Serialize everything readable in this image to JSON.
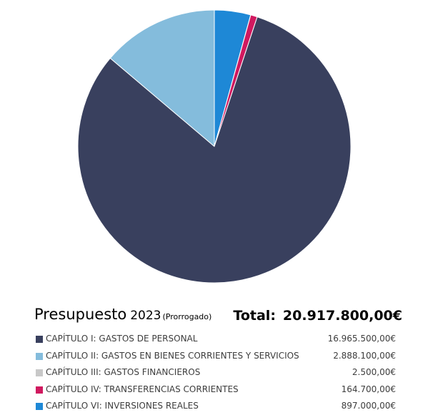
{
  "title": {
    "main": "Presupuesto",
    "year": "2023",
    "note": "(Prorrogado)"
  },
  "total": {
    "label": "Total:",
    "value": "20.917.800,00€"
  },
  "legend": [
    {
      "label": "CAPÍTULO I: GASTOS DE PERSONAL",
      "value": "16.965.500,00€",
      "color": "#39405e"
    },
    {
      "label": "CAPÍTULO II: GASTOS EN BIENES CORRIENTES Y SERVICIOS",
      "value": "2.888.100,00€",
      "color": "#84bcdc"
    },
    {
      "label": "CAPÍTULO III: GASTOS FINANCIEROS",
      "value": "2.500,00€",
      "color": "#c8c8c8"
    },
    {
      "label": "CAPÍTULO IV: TRANSFERENCIAS CORRIENTES",
      "value": "164.700,00€",
      "color": "#d0195f"
    },
    {
      "label": "CAPÍTULO VI: INVERSIONES REALES",
      "value": "897.000,00€",
      "color": "#1e88d6"
    }
  ],
  "chart_data": {
    "type": "pie",
    "title": "Presupuesto 2023 (Prorrogado)",
    "total": 20917800.0,
    "currency": "€",
    "slice_order": "clockwise from top",
    "legend_placement": "bottom",
    "slices": [
      {
        "name": "CAPÍTULO I: GASTOS DE PERSONAL",
        "value": 16965500.0,
        "color": "#39405e"
      },
      {
        "name": "CAPÍTULO II: GASTOS EN BIENES CORRIENTES Y SERVICIOS",
        "value": 2888100.0,
        "color": "#84bcdc"
      },
      {
        "name": "CAPÍTULO III: GASTOS FINANCIEROS",
        "value": 2500.0,
        "color": "#c8c8c8"
      },
      {
        "name": "CAPÍTULO IV: TRANSFERENCIAS CORRIENTES",
        "value": 164700.0,
        "color": "#d0195f"
      },
      {
        "name": "CAPÍTULO VI: INVERSIONES REALES",
        "value": 897000.0,
        "color": "#1e88d6"
      }
    ],
    "draw_order": [
      4,
      2,
      3,
      0,
      1
    ]
  }
}
